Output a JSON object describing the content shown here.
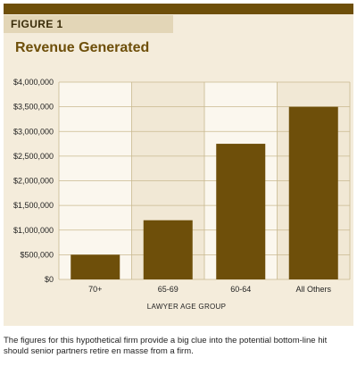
{
  "figure_label": "FIGURE 1",
  "caption": "The figures for this hypothetical firm provide a big clue into the potential bottom-line hit should senior partners retire en masse from a firm.",
  "colors": {
    "bar": "#6e4f0a",
    "band_a": "#fbf7ee",
    "band_b": "#f1e8d5",
    "grid": "#c9b88f",
    "frame": "#f4ecdb",
    "accent": "#6e4f0a"
  },
  "chart_data": {
    "type": "bar",
    "title": "Revenue Generated",
    "xlabel": "LAWYER AGE GROUP",
    "ylabel": "",
    "categories": [
      "70+",
      "65-69",
      "60-64",
      "All Others"
    ],
    "values": [
      500000,
      1200000,
      2750000,
      3500000
    ],
    "ylim": [
      0,
      4000000
    ],
    "yticks": [
      0,
      500000,
      1000000,
      1500000,
      2000000,
      2500000,
      3000000,
      3500000,
      4000000
    ],
    "ytick_labels": [
      "$0",
      "$500,000",
      "$1,000,000",
      "$1,500,000",
      "$2,000,000",
      "$2,500,000",
      "$3,000,000",
      "$3,500,000",
      "$4,000,000"
    ],
    "grid": true,
    "legend": "none"
  }
}
